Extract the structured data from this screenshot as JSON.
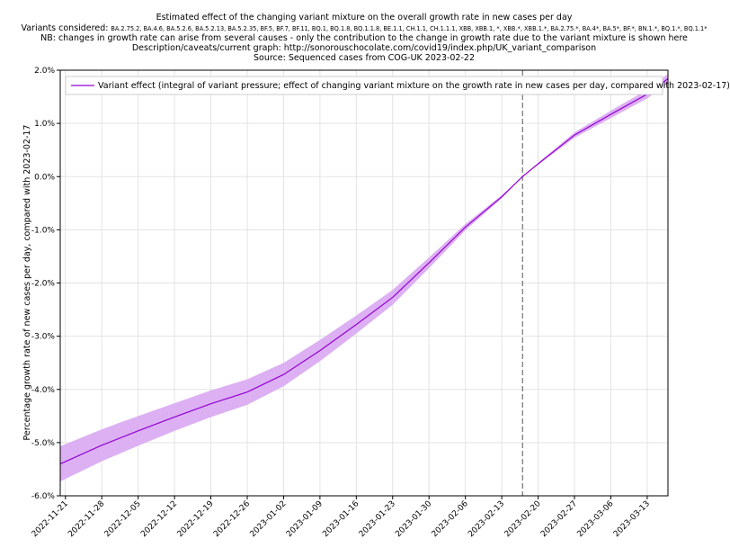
{
  "chart_data": {
    "type": "line",
    "title_lines": [
      "Estimated effect of the changing variant mixture on the overall growth rate in new cases per day",
      "NB: changes in growth rate can arise from several causes - only the contribution to the change in growth rate due to the variant mixture is shown here",
      "Description/caveats/current graph: http://sonorouschocolate.com/covid19/index.php/UK_variant_comparison",
      "Source: Sequenced cases from COG-UK 2023-02-22"
    ],
    "variants_label": "Variants considered:",
    "variants_list": "BA.2.75.2, BA.4.6, BA.5.2.6, BA.5.2.13, BA.5.2.35, BF.5, BF.7, BF.11, BQ.1, BQ.1.8, BQ.1.1.8, BE.1.1, CH.1.1, CH.1.1.1, XBB, XBB.1, *, XBB.*, XBB.1.*, BA.2.75.*, BA.4*, BA.5*, BF.*, BN.1.*, BQ.1.*, BQ.1.1*",
    "ylabel": "Percentage growth rate of new cases per day, compared with 2023-02-17",
    "x": [
      "2022-11-20",
      "2022-11-28",
      "2022-12-05",
      "2022-12-12",
      "2022-12-19",
      "2022-12-26",
      "2023-01-02",
      "2023-01-09",
      "2023-01-16",
      "2023-01-23",
      "2023-01-30",
      "2023-02-06",
      "2023-02-13",
      "2023-02-17",
      "2023-02-20",
      "2023-02-27",
      "2023-03-06",
      "2023-03-13",
      "2023-03-17"
    ],
    "series": [
      {
        "name": "Variant effect (integral of variant pressure; effect of changing variant mixture on the growth rate in new cases per day, compared with 2023-02-17)",
        "color": "#9400d3",
        "band_color": "#dcb0f2",
        "values": [
          -5.4,
          -5.05,
          -4.78,
          -4.52,
          -4.27,
          -4.05,
          -3.72,
          -3.27,
          -2.78,
          -2.27,
          -1.62,
          -0.95,
          -0.38,
          0,
          0.24,
          0.78,
          1.17,
          1.55,
          1.84
        ],
        "band_lower": [
          -5.73,
          -5.35,
          -5.06,
          -4.78,
          -4.52,
          -4.29,
          -3.94,
          -3.47,
          -2.95,
          -2.41,
          -1.72,
          -1.01,
          -0.41,
          0,
          0.22,
          0.73,
          1.1,
          1.47,
          1.75
        ],
        "band_upper": [
          -5.07,
          -4.75,
          -4.5,
          -4.26,
          -4.02,
          -3.81,
          -3.5,
          -3.07,
          -2.61,
          -2.13,
          -1.52,
          -0.89,
          -0.35,
          0,
          0.26,
          0.83,
          1.24,
          1.63,
          1.93
        ]
      }
    ],
    "xlim": [
      "2022-11-20",
      "2023-03-17"
    ],
    "xticks": [
      "2022-11-21",
      "2022-11-28",
      "2022-12-05",
      "2022-12-12",
      "2022-12-19",
      "2022-12-26",
      "2023-01-02",
      "2023-01-09",
      "2023-01-16",
      "2023-01-23",
      "2023-01-30",
      "2023-02-06",
      "2023-02-13",
      "2023-02-20",
      "2023-02-27",
      "2023-03-06",
      "2023-03-13"
    ],
    "ylim": [
      -6,
      2
    ],
    "yticks": [
      {
        "value": -6,
        "label": "-6.0%"
      },
      {
        "value": -5,
        "label": "-5.0%"
      },
      {
        "value": -4,
        "label": "-4.0%"
      },
      {
        "value": -3,
        "label": "-3.0%"
      },
      {
        "value": -2,
        "label": "-2.0%"
      },
      {
        "value": -1,
        "label": "-1.0%"
      },
      {
        "value": 0,
        "label": "0.0%"
      },
      {
        "value": 1,
        "label": "1.0%"
      },
      {
        "value": 2,
        "label": "2.0%"
      }
    ],
    "vline": "2023-02-17",
    "grid": true,
    "legend": "upper-left"
  }
}
